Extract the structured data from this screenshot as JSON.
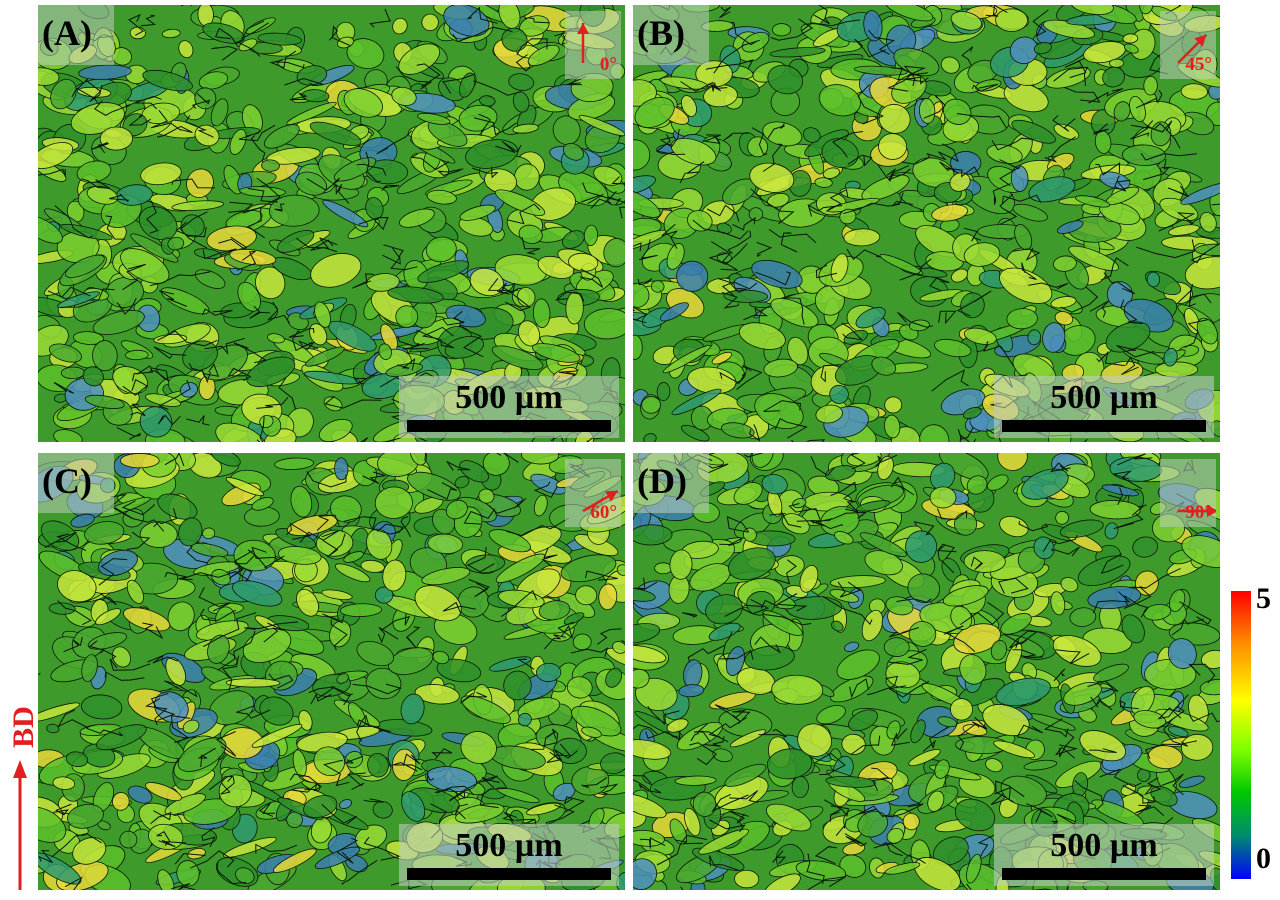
{
  "panels": [
    {
      "label": "(A)",
      "direction": "0°",
      "scale": "500 µm",
      "angle_deg": 0
    },
    {
      "label": "(B)",
      "direction": "45°",
      "scale": "500 µm",
      "angle_deg": 45
    },
    {
      "label": "(C)",
      "direction": "60°",
      "scale": "500 µm",
      "angle_deg": 60
    },
    {
      "label": "(D)",
      "direction": "90°",
      "scale": "500 µm",
      "angle_deg": 90
    }
  ],
  "build_direction_label": "BD",
  "colorbar": {
    "max": "5",
    "min": "0",
    "colors": [
      "#ff0000",
      "#ffff00",
      "#00c800",
      "#0000ff"
    ]
  },
  "colors": {
    "grain_green": "#3e9a2a",
    "accent_red": "#e02020"
  }
}
